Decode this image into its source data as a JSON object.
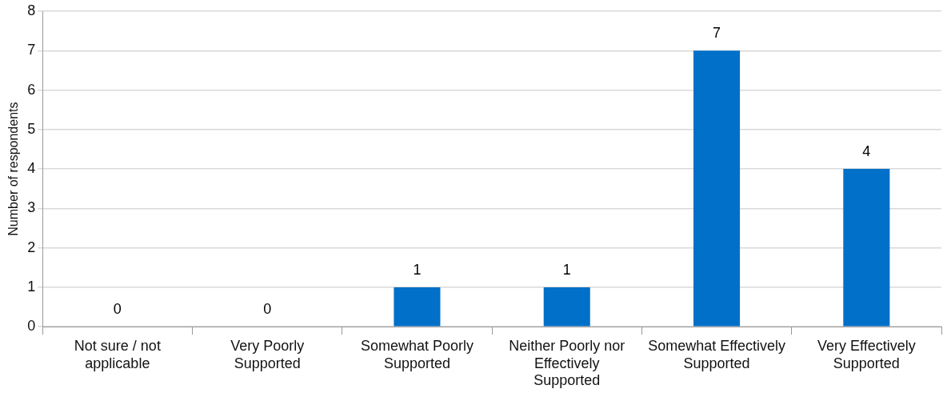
{
  "chart_data": {
    "type": "bar",
    "ylabel": "Number of respondents",
    "categories": [
      "Not sure / not applicable",
      "Very Poorly Supported",
      "Somewhat Poorly Supported",
      "Neither Poorly nor Effectively Supported",
      "Somewhat Effectively Supported",
      "Very Effectively Supported"
    ],
    "values": [
      0,
      0,
      1,
      1,
      7,
      4
    ],
    "color": "#0070c8",
    "ylim": [
      0,
      8
    ],
    "yticks": [
      0,
      1,
      2,
      3,
      4,
      5,
      6,
      7,
      8
    ],
    "grid": "y",
    "data_labels": true
  }
}
